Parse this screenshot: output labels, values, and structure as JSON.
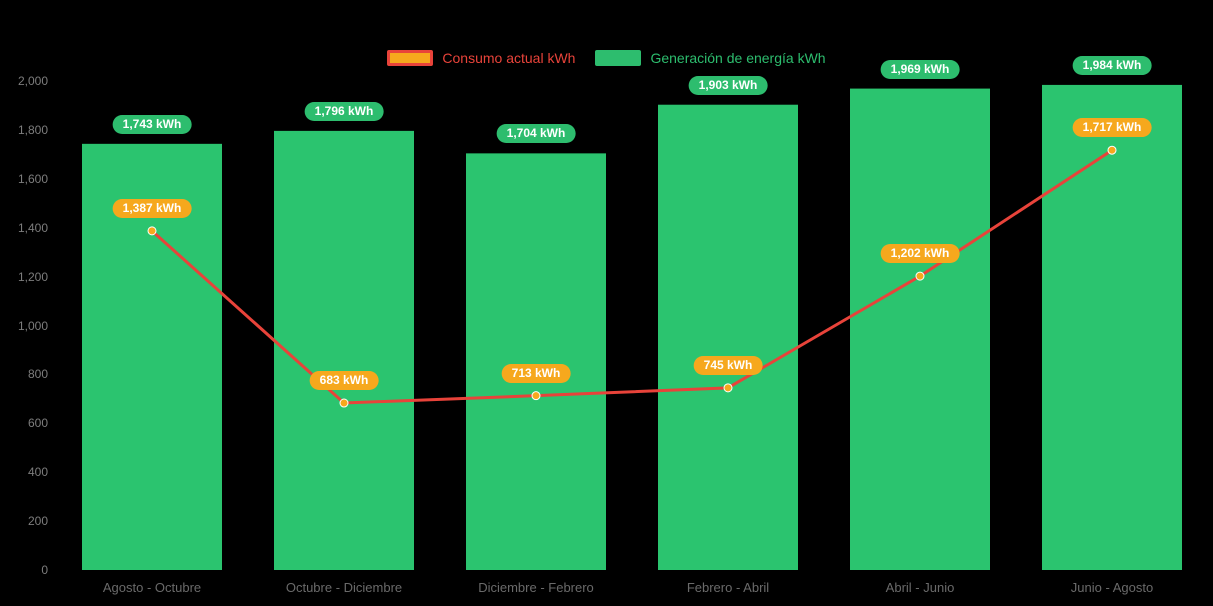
{
  "legend": {
    "consumption_label": "Consumo actual kWh",
    "generation_label": "Generación de energía kWh"
  },
  "chart_data": {
    "type": "bar",
    "title": "",
    "categories": [
      "Agosto - Octubre",
      "Octubre - Diciembre",
      "Diciembre - Febrero",
      "Febrero - Abril",
      "Abril - Junio",
      "Junio - Agosto"
    ],
    "series": [
      {
        "name": "Consumo actual kWh",
        "type": "line",
        "color": "#e8433a",
        "point_color": "#f6a81d",
        "values": [
          1387,
          683,
          713,
          745,
          1202,
          1717
        ],
        "labels": [
          "1,387 kWh",
          "683 kWh",
          "713 kWh",
          "745 kWh",
          "1,202 kWh",
          "1,717 kWh"
        ]
      },
      {
        "name": "Generación de energía kWh",
        "type": "bar",
        "color": "#2bc46f",
        "values": [
          1743,
          1796,
          1704,
          1903,
          1969,
          1984
        ],
        "labels": [
          "1,743 kWh",
          "1,796 kWh",
          "1,704 kWh",
          "1,903 kWh",
          "1,969 kWh",
          "1,984 kWh"
        ]
      }
    ],
    "ylim": [
      0,
      2000
    ],
    "y_ticks": [
      {
        "value": 0,
        "label": "0"
      },
      {
        "value": 200,
        "label": "200"
      },
      {
        "value": 400,
        "label": "400"
      },
      {
        "value": 600,
        "label": "600"
      },
      {
        "value": 800,
        "label": "800"
      },
      {
        "value": 1000,
        "label": "1,000"
      },
      {
        "value": 1200,
        "label": "1,200"
      },
      {
        "value": 1400,
        "label": "1,400"
      },
      {
        "value": 1600,
        "label": "1,600"
      },
      {
        "value": 1800,
        "label": "1,800"
      },
      {
        "value": 2000,
        "label": "2,000"
      }
    ],
    "grid": false,
    "legend_position": "top",
    "background": "#000000"
  }
}
